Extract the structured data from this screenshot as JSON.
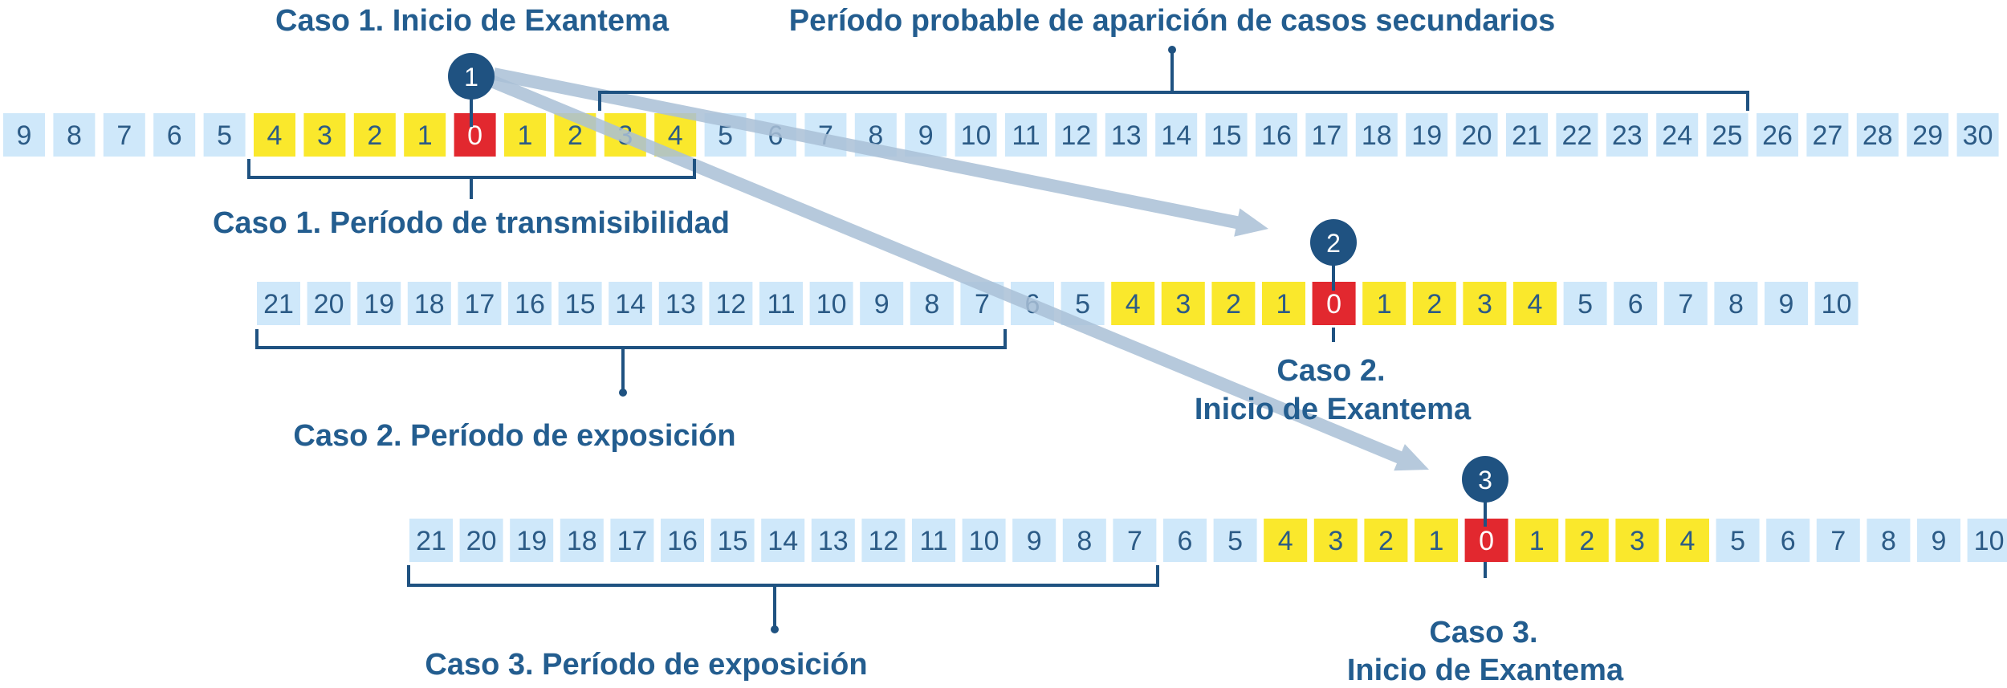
{
  "colors": {
    "cell_default": "#cfe8fa",
    "cell_transmission": "#fae82c",
    "cell_onset": "#e2282f",
    "marker": "#1f5281",
    "bracket": "#1f5281",
    "arrow": "#a9c0d6",
    "label": "#235d8f"
  },
  "rows": [
    {
      "id": "caso-1",
      "cells": [
        "9",
        "8",
        "7",
        "6",
        "5",
        "4",
        "3",
        "2",
        "1",
        "0",
        "1",
        "2",
        "3",
        "4",
        "5",
        "6",
        "7",
        "8",
        "9",
        "10",
        "11",
        "12",
        "13",
        "14",
        "15",
        "16",
        "17",
        "18",
        "19",
        "20",
        "21",
        "22",
        "23",
        "24",
        "25",
        "26",
        "27",
        "28",
        "29",
        "30"
      ],
      "highlight_start": 5,
      "highlight_end": 13,
      "onset_index": 9,
      "marker": "1"
    },
    {
      "id": "caso-2",
      "cells": [
        "21",
        "20",
        "19",
        "18",
        "17",
        "16",
        "15",
        "14",
        "13",
        "12",
        "11",
        "10",
        "9",
        "8",
        "7",
        "6",
        "5",
        "4",
        "3",
        "2",
        "1",
        "0",
        "1",
        "2",
        "3",
        "4",
        "5",
        "6",
        "7",
        "8",
        "9",
        "10"
      ],
      "highlight_start": 17,
      "highlight_end": 25,
      "onset_index": 21,
      "marker": "2"
    },
    {
      "id": "caso-3",
      "cells": [
        "21",
        "20",
        "19",
        "18",
        "17",
        "16",
        "15",
        "14",
        "13",
        "12",
        "11",
        "10",
        "9",
        "8",
        "7",
        "6",
        "5",
        "4",
        "3",
        "2",
        "1",
        "0",
        "1",
        "2",
        "3",
        "4",
        "5",
        "6",
        "7",
        "8",
        "9",
        "10"
      ],
      "highlight_start": 17,
      "highlight_end": 25,
      "onset_index": 21,
      "marker": "3"
    }
  ],
  "labels": {
    "caso1_onset": "Caso 1. Inicio de Exantema",
    "secondary_period": "Período probable de aparición de casos secundarios",
    "caso1_transmission": "Caso 1. Período de transmisibilidad",
    "caso2_exposure": "Caso 2. Período de exposición",
    "caso2_onset_line1": "Caso 2.",
    "caso2_onset_line2": "Inicio de Exantema",
    "caso3_exposure": "Caso 3. Período de exposición",
    "caso3_onset_line1": "Caso 3.",
    "caso3_onset_line2": "Inicio de Exantema"
  }
}
